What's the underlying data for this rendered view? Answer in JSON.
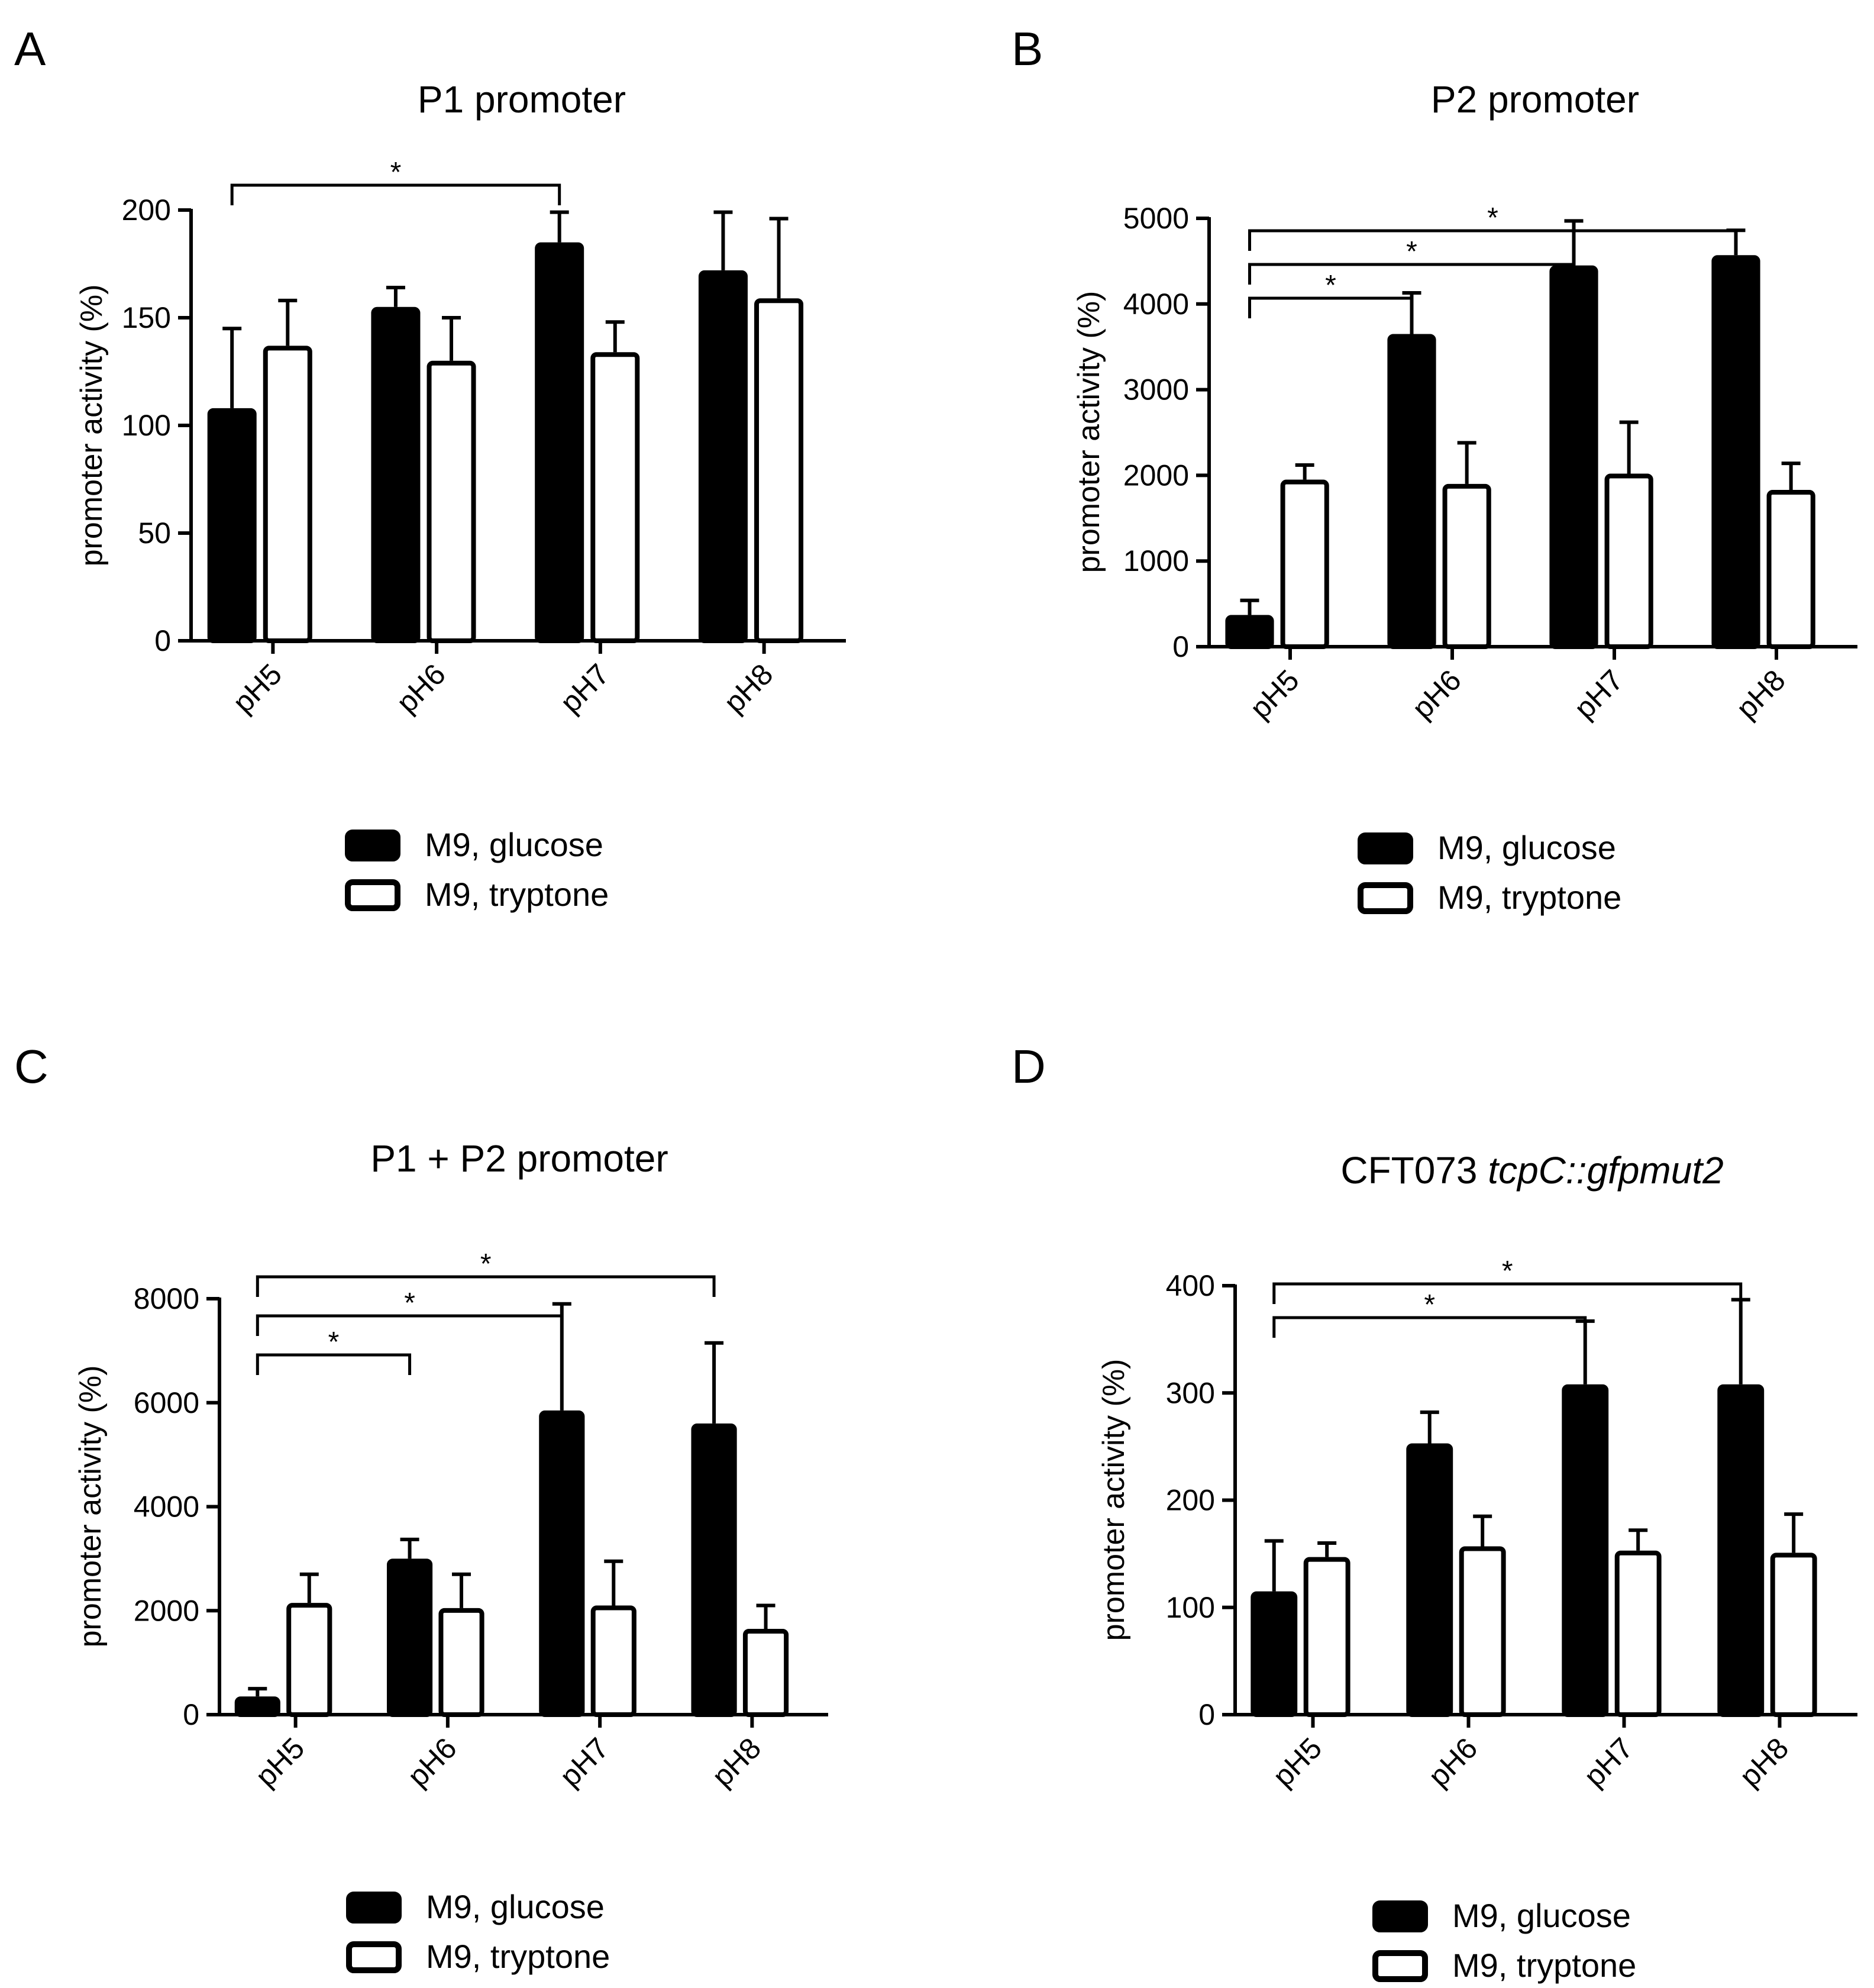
{
  "figure": {
    "legend": [
      {
        "label": "M9, glucose",
        "fill": "#000000"
      },
      {
        "label": "M9, tryptone",
        "fill": "#ffffff"
      }
    ],
    "colors": {
      "glucose": "#000000",
      "tryptone": "#ffffff",
      "stroke": "#000000"
    }
  },
  "chart_data": [
    {
      "panel": "A",
      "type": "bar",
      "title": "P1 promoter",
      "title_italic": "",
      "ylabel": "promoter activity (%)",
      "xlabel": "",
      "categories": [
        "pH5",
        "pH6",
        "pH7",
        "pH8"
      ],
      "ylim": [
        0,
        200
      ],
      "yticks": [
        0,
        50,
        100,
        150,
        200
      ],
      "series": [
        {
          "name": "M9, glucose",
          "values": [
            108,
            155,
            185,
            172
          ],
          "errors": [
            37,
            9,
            14,
            27
          ]
        },
        {
          "name": "M9, tryptone",
          "values": [
            137,
            130,
            134,
            159
          ],
          "errors": [
            21,
            20,
            14,
            37
          ]
        }
      ],
      "significance": [
        {
          "from": 0,
          "to": 2,
          "label": "*"
        }
      ]
    },
    {
      "panel": "B",
      "type": "bar",
      "title": "P2 promoter",
      "title_italic": "",
      "ylabel": "promoter activity (%)",
      "xlabel": "",
      "categories": [
        "pH5",
        "pH6",
        "pH7",
        "pH8"
      ],
      "ylim": [
        0,
        5000
      ],
      "yticks": [
        0,
        1000,
        2000,
        3000,
        4000,
        5000
      ],
      "series": [
        {
          "name": "M9, glucose",
          "values": [
            370,
            3650,
            4450,
            4570
          ],
          "errors": [
            170,
            480,
            520,
            290
          ]
        },
        {
          "name": "M9, tryptone",
          "values": [
            1950,
            1900,
            2020,
            1830
          ],
          "errors": [
            170,
            480,
            600,
            310
          ]
        }
      ],
      "significance": [
        {
          "from": 0,
          "to": 1,
          "label": "*"
        },
        {
          "from": 0,
          "to": 2,
          "label": "*"
        },
        {
          "from": 0,
          "to": 3,
          "label": "*"
        }
      ]
    },
    {
      "panel": "C",
      "type": "bar",
      "title": "P1 + P2 promoter",
      "title_italic": "",
      "ylabel": "promoter activity (%)",
      "xlabel": "",
      "categories": [
        "pH5",
        "pH6",
        "pH7",
        "pH8"
      ],
      "ylim": [
        0,
        8000
      ],
      "yticks": [
        0,
        2000,
        4000,
        6000,
        8000
      ],
      "series": [
        {
          "name": "M9, glucose",
          "values": [
            350,
            3000,
            5850,
            5600
          ],
          "errors": [
            150,
            370,
            2050,
            1550
          ]
        },
        {
          "name": "M9, tryptone",
          "values": [
            2150,
            2050,
            2100,
            1650
          ],
          "errors": [
            550,
            650,
            850,
            450
          ]
        }
      ],
      "significance": [
        {
          "from": 0,
          "to": 1,
          "label": "*"
        },
        {
          "from": 0,
          "to": 2,
          "label": "*"
        },
        {
          "from": 0,
          "to": 3,
          "label": "*"
        }
      ]
    },
    {
      "panel": "D",
      "type": "bar",
      "title": "CFT073 ",
      "title_italic": "tcpC::gfpmut2",
      "ylabel": "promoter activity (%)",
      "xlabel": "",
      "categories": [
        "pH5",
        "pH6",
        "pH7",
        "pH8"
      ],
      "ylim": [
        0,
        400
      ],
      "yticks": [
        0,
        100,
        200,
        300,
        400
      ],
      "series": [
        {
          "name": "M9, glucose",
          "values": [
            115,
            253,
            308,
            308
          ],
          "errors": [
            47,
            29,
            59,
            79
          ]
        },
        {
          "name": "M9, tryptone",
          "values": [
            147,
            157,
            153,
            151
          ],
          "errors": [
            13,
            28,
            19,
            36
          ]
        }
      ],
      "significance": [
        {
          "from": 0,
          "to": 2,
          "label": "*"
        },
        {
          "from": 0,
          "to": 3,
          "label": "*"
        }
      ]
    }
  ]
}
